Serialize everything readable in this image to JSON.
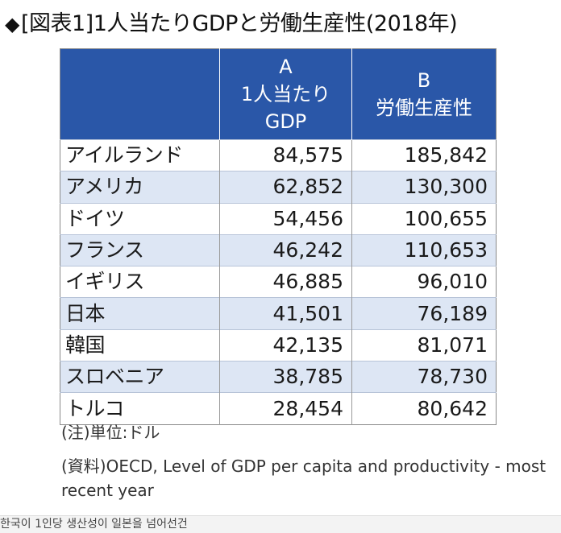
{
  "title": {
    "icon": "black-diamond",
    "text": "[図表1]1人当たりGDPと労働生産性(2018年)"
  },
  "table": {
    "headers": [
      {
        "letter": "",
        "lines": []
      },
      {
        "letter": "A",
        "lines": [
          "1人当たり",
          "GDP"
        ]
      },
      {
        "letter": "B",
        "lines": [
          "労働生産性"
        ]
      }
    ],
    "rows": [
      {
        "country": "アイルランド",
        "gdp": "84,575",
        "productivity": "185,842"
      },
      {
        "country": "アメリカ",
        "gdp": "62,852",
        "productivity": "130,300"
      },
      {
        "country": "ドイツ",
        "gdp": "54,456",
        "productivity": "100,655"
      },
      {
        "country": "フランス",
        "gdp": "46,242",
        "productivity": "110,653"
      },
      {
        "country": "イギリス",
        "gdp": "46,885",
        "productivity": "96,010"
      },
      {
        "country": "日本",
        "gdp": "41,501",
        "productivity": "76,189"
      },
      {
        "country": "韓国",
        "gdp": "42,135",
        "productivity": "81,071"
      },
      {
        "country": "スロベニア",
        "gdp": "38,785",
        "productivity": "78,730"
      },
      {
        "country": "トルコ",
        "gdp": "28,454",
        "productivity": "80,642"
      }
    ]
  },
  "notes": {
    "unit": "(注)単位:ドル",
    "source": "(資料)OECD, Level of GDP per capita and productivity - most recent year"
  },
  "caption": "한국이 1인당 생산성이 일본을 넘어선건",
  "colors": {
    "header_bg": "#2a57a8",
    "stripe_bg": "#dde6f4"
  }
}
